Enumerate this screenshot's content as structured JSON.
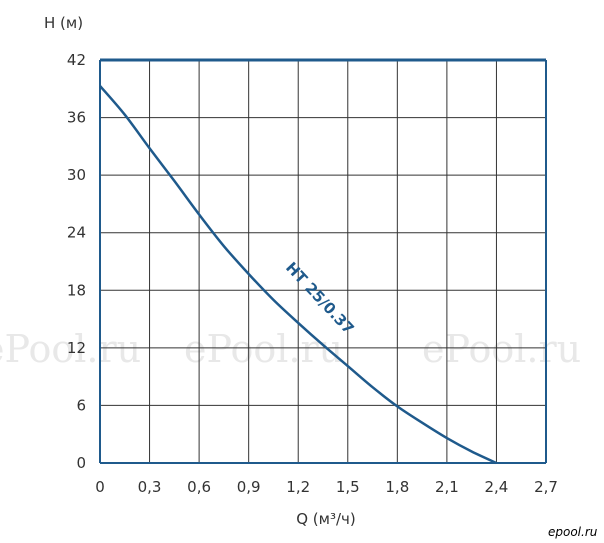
{
  "chart_data": {
    "type": "line",
    "xlabel": "Q (м³/ч)",
    "ylabel": "H (м)",
    "xlim": [
      0,
      2.7
    ],
    "ylim": [
      0,
      42
    ],
    "x_ticks": [
      "0",
      "0,3",
      "0,6",
      "0,9",
      "1,2",
      "1,5",
      "1,8",
      "2,1",
      "2,4",
      "2,7"
    ],
    "y_ticks": [
      "0",
      "6",
      "12",
      "18",
      "24",
      "30",
      "36",
      "42"
    ],
    "grid": true,
    "series": [
      {
        "name": "HT 25/0.37",
        "color": "#1f5a8c",
        "x": [
          0,
          0.15,
          0.3,
          0.45,
          0.6,
          0.75,
          0.9,
          1.05,
          1.2,
          1.35,
          1.5,
          1.65,
          1.8,
          1.95,
          2.1,
          2.25,
          2.4
        ],
        "y": [
          39.3,
          36.3,
          32.8,
          29.4,
          25.9,
          22.6,
          19.7,
          17.0,
          14.6,
          12.3,
          10.1,
          7.9,
          5.9,
          4.2,
          2.6,
          1.2,
          0
        ]
      }
    ]
  },
  "watermarks": [
    "ePool.ru",
    "ePool.ru",
    "ePool.ru"
  ],
  "brand_logo_text": "epool.ru",
  "colors": {
    "curve": "#1f5a8c",
    "frame": "#1f5a8c",
    "grid": "#333333",
    "watermark": "#e8e8e8"
  }
}
